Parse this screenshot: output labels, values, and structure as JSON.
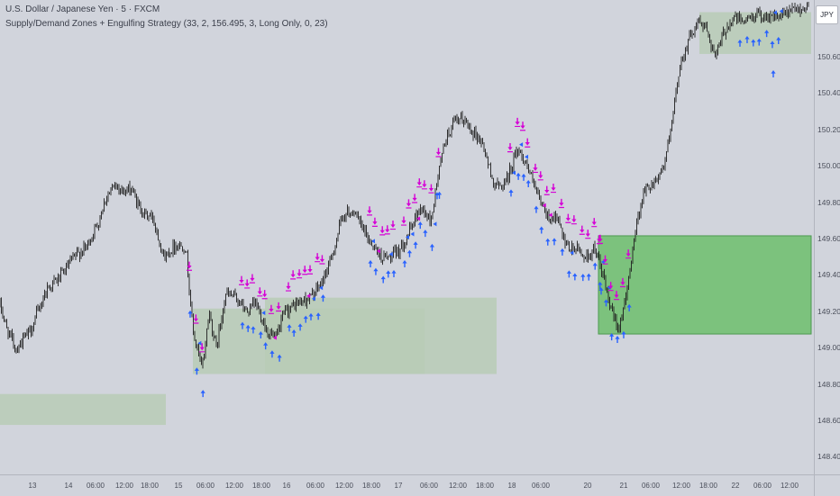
{
  "legend": {
    "title": "U.S. Dollar / Japanese Yen · 5 · FXCM",
    "study": "Supply/Demand Zones + Engulfing Strategy (33, 2, 156.495, 3, Long Only, 0, 23)"
  },
  "currency": "JPY",
  "price_axis": {
    "labels": [
      "150.600",
      "150.400",
      "150.200",
      "150.000",
      "149.800",
      "149.600",
      "149.400",
      "149.200",
      "149.000",
      "148.800",
      "148.600",
      "148.400"
    ]
  },
  "time_axis": {
    "labels": [
      "13",
      "14",
      "06:00",
      "12:00",
      "18:00",
      "15",
      "06:00",
      "12:00",
      "18:00",
      "16",
      "06:00",
      "12:00",
      "18:00",
      "17",
      "06:00",
      "12:00",
      "18:00",
      "18",
      "06:00",
      "20",
      "21",
      "06:00",
      "12:00",
      "18:00",
      "22",
      "06:00",
      "12:00"
    ]
  },
  "colors": {
    "background": "#d1d4dc",
    "candle": "#1e1e1e",
    "zone_fill": "#b8cbb6",
    "zone_active": "#7cc27d",
    "zone_active_border": "#4c9a50",
    "long_marker": "#2962ff",
    "short_marker": "#d500d5"
  },
  "chart_data": {
    "type": "candlestick",
    "symbol": "USDJPY",
    "timeframe": "5",
    "y_range": [
      148.35,
      150.8
    ],
    "x_range": [
      "13",
      "22 12:00"
    ],
    "close_path": [
      [
        0,
        149.24
      ],
      [
        8,
        149.1
      ],
      [
        18,
        149.0
      ],
      [
        34,
        149.1
      ],
      [
        52,
        149.33
      ],
      [
        68,
        149.4
      ],
      [
        82,
        149.5
      ],
      [
        96,
        149.56
      ],
      [
        108,
        149.68
      ],
      [
        118,
        149.84
      ],
      [
        130,
        149.9
      ],
      [
        138,
        149.86
      ],
      [
        146,
        149.88
      ],
      [
        152,
        149.8
      ],
      [
        160,
        149.74
      ],
      [
        170,
        149.72
      ],
      [
        182,
        149.5
      ],
      [
        194,
        149.57
      ],
      [
        206,
        149.56
      ],
      [
        214,
        149.1
      ],
      [
        224,
        148.88
      ],
      [
        232,
        149.2
      ],
      [
        240,
        149.0
      ],
      [
        250,
        149.3
      ],
      [
        262,
        149.28
      ],
      [
        274,
        149.2
      ],
      [
        284,
        149.25
      ],
      [
        296,
        149.1
      ],
      [
        306,
        149.05
      ],
      [
        316,
        149.2
      ],
      [
        330,
        149.25
      ],
      [
        344,
        149.28
      ],
      [
        356,
        149.35
      ],
      [
        368,
        149.5
      ],
      [
        380,
        149.73
      ],
      [
        392,
        149.76
      ],
      [
        402,
        149.66
      ],
      [
        412,
        149.58
      ],
      [
        424,
        149.5
      ],
      [
        434,
        149.5
      ],
      [
        444,
        149.55
      ],
      [
        456,
        149.66
      ],
      [
        466,
        149.78
      ],
      [
        478,
        149.7
      ],
      [
        486,
        149.95
      ],
      [
        494,
        150.15
      ],
      [
        504,
        150.24
      ],
      [
        514,
        150.26
      ],
      [
        524,
        150.2
      ],
      [
        536,
        150.12
      ],
      [
        546,
        149.93
      ],
      [
        554,
        149.88
      ],
      [
        564,
        149.95
      ],
      [
        574,
        150.1
      ],
      [
        584,
        150.02
      ],
      [
        596,
        149.84
      ],
      [
        608,
        149.72
      ],
      [
        618,
        149.72
      ],
      [
        628,
        149.55
      ],
      [
        640,
        149.55
      ],
      [
        650,
        149.5
      ],
      [
        660,
        149.55
      ],
      [
        668,
        149.42
      ],
      [
        678,
        149.2
      ],
      [
        686,
        149.12
      ],
      [
        694,
        149.25
      ],
      [
        704,
        149.63
      ],
      [
        714,
        149.86
      ],
      [
        726,
        149.92
      ],
      [
        736,
        150.0
      ],
      [
        744,
        150.18
      ],
      [
        754,
        150.55
      ],
      [
        764,
        150.7
      ],
      [
        774,
        150.8
      ],
      [
        784,
        150.76
      ],
      [
        794,
        150.6
      ],
      [
        804,
        150.75
      ],
      [
        814,
        150.82
      ],
      [
        826,
        150.8
      ],
      [
        840,
        150.84
      ],
      [
        852,
        150.83
      ],
      [
        864,
        150.82
      ],
      [
        880,
        150.86
      ],
      [
        900,
        150.88
      ]
    ],
    "zones": [
      {
        "x0": "12 ~17:00",
        "x1": "14 ~20:00",
        "low": 148.58,
        "high": 148.75
      },
      {
        "x0": "15 ~03:00",
        "x1": "17 ~18:00",
        "low": 148.86,
        "high": 149.22
      },
      {
        "x0": "15 ~18:00",
        "x1": "18 ~00:00",
        "low": 148.86,
        "high": 149.28
      },
      {
        "x0": "20 ~03:00",
        "x1": "22 14:00",
        "low": 149.08,
        "high": 149.62
      },
      {
        "x0": "21 ~15:00",
        "x1": "22 14:00",
        "low": 150.62,
        "high": 150.85
      }
    ],
    "signals": {
      "long_count": 75,
      "short_count": 75
    }
  }
}
